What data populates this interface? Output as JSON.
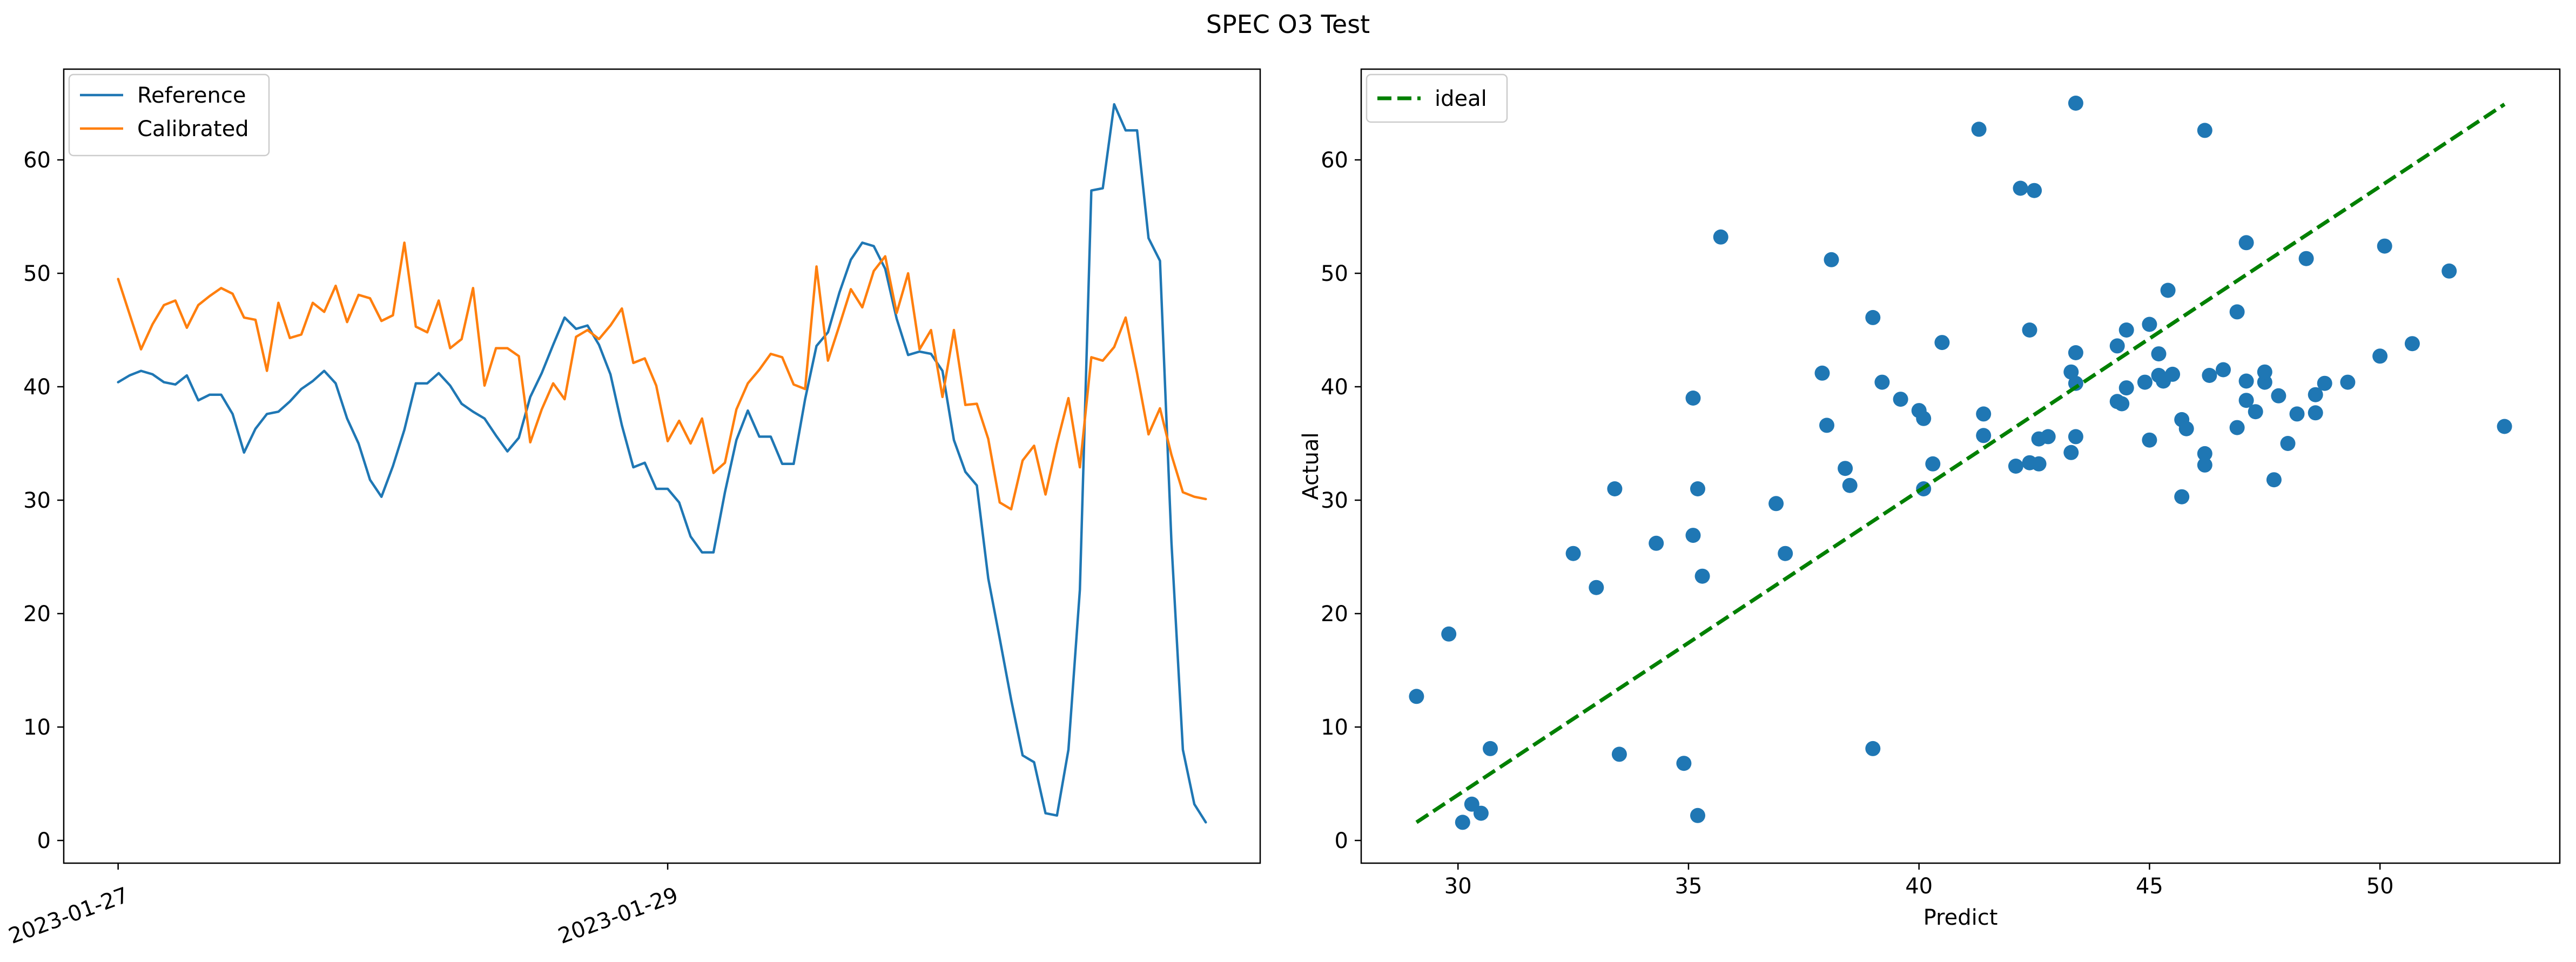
{
  "figure": {
    "title": "SPEC O3 Test"
  },
  "colors": {
    "reference": "#1f77b4",
    "calibrated": "#ff7f0e",
    "scatter": "#1f77b4",
    "ideal": "#008000"
  },
  "chart_data": [
    {
      "type": "line",
      "title": "",
      "xlabel": "",
      "ylabel": "",
      "x_tick_labels": [
        "2023-01-27",
        "2023-01-29"
      ],
      "x_ticks": [
        "2023-01-27T00:00",
        "2023-01-29T00:00"
      ],
      "x_start": "2023-01-27T00:00",
      "x_step_hours": 1,
      "ylim": [
        -2,
        68
      ],
      "y_ticks": [
        0,
        10,
        20,
        30,
        40,
        50,
        60
      ],
      "legend": {
        "placement": "upper left",
        "entries": [
          "Reference",
          "Calibrated"
        ]
      },
      "series": [
        {
          "name": "Reference",
          "color": "#1f77b4",
          "values": [
            40.4,
            41.0,
            41.4,
            41.1,
            40.4,
            40.2,
            41.0,
            38.8,
            39.3,
            39.3,
            37.6,
            34.2,
            36.3,
            37.6,
            37.8,
            38.7,
            39.8,
            40.5,
            41.4,
            40.3,
            37.2,
            35.0,
            31.8,
            30.3,
            33.0,
            36.2,
            40.3,
            40.3,
            41.2,
            40.1,
            38.5,
            37.8,
            37.2,
            35.7,
            34.3,
            35.5,
            39.1,
            41.2,
            43.7,
            46.1,
            45.1,
            45.4,
            43.7,
            41.1,
            36.6,
            32.9,
            33.3,
            31.0,
            31.0,
            29.8,
            26.8,
            25.4,
            25.4,
            30.7,
            35.3,
            37.9,
            35.6,
            35.6,
            33.2,
            33.2,
            38.9,
            43.6,
            44.8,
            48.3,
            51.2,
            52.7,
            52.4,
            50.4,
            46.0,
            42.8,
            43.1,
            42.9,
            41.4,
            35.3,
            32.5,
            31.3,
            23.1,
            17.8,
            12.4,
            7.5,
            6.9,
            2.4,
            2.2,
            8.0,
            22.1,
            57.3,
            57.5,
            64.9,
            62.6,
            62.6,
            53.1,
            51.1,
            26.3,
            8.0,
            3.2,
            1.6
          ]
        },
        {
          "name": "Calibrated",
          "color": "#ff7f0e",
          "values": [
            49.5,
            46.4,
            43.3,
            45.5,
            47.2,
            47.6,
            45.2,
            47.2,
            48.0,
            48.7,
            48.2,
            46.1,
            45.9,
            41.4,
            47.4,
            44.3,
            44.6,
            47.4,
            46.6,
            48.9,
            45.7,
            48.1,
            47.8,
            45.8,
            46.3,
            52.7,
            45.3,
            44.8,
            47.6,
            43.4,
            44.2,
            48.7,
            40.1,
            43.4,
            43.4,
            42.7,
            35.1,
            38.0,
            40.3,
            38.9,
            44.4,
            45.0,
            44.2,
            45.4,
            46.9,
            42.1,
            42.5,
            40.1,
            35.2,
            37.0,
            35.0,
            37.2,
            32.4,
            33.3,
            38.0,
            40.3,
            41.5,
            42.9,
            42.6,
            40.2,
            39.8,
            50.6,
            42.3,
            45.4,
            48.6,
            47.0,
            50.2,
            51.5,
            46.5,
            50.0,
            43.3,
            45.0,
            39.1,
            45.0,
            38.4,
            38.5,
            35.4,
            29.8,
            29.2,
            33.5,
            34.8,
            30.5,
            35.0,
            39.0,
            32.9,
            42.6,
            42.3,
            43.5,
            46.1,
            41.2,
            35.8,
            38.1,
            34.0,
            30.7,
            30.3,
            30.1
          ]
        }
      ]
    },
    {
      "type": "scatter",
      "title": "",
      "xlabel": "Predict",
      "ylabel": "Actual",
      "xlim": [
        27.9,
        53.9
      ],
      "ylim": [
        -2,
        68
      ],
      "x_ticks": [
        30,
        35,
        40,
        45,
        50
      ],
      "y_ticks": [
        0,
        10,
        20,
        30,
        40,
        50,
        60
      ],
      "legend": {
        "placement": "upper left",
        "entries": [
          "ideal"
        ]
      },
      "ideal_line": {
        "name": "ideal",
        "color": "#008000",
        "x": [
          29.1,
          52.7
        ],
        "y": [
          1.6,
          64.9
        ]
      },
      "points": [
        [
          29.1,
          12.7
        ],
        [
          29.8,
          18.2
        ],
        [
          30.1,
          1.6
        ],
        [
          30.3,
          3.2
        ],
        [
          30.5,
          2.4
        ],
        [
          30.7,
          8.1
        ],
        [
          32.5,
          25.3
        ],
        [
          33.0,
          22.3
        ],
        [
          33.4,
          31.0
        ],
        [
          33.5,
          7.6
        ],
        [
          34.3,
          26.2
        ],
        [
          34.9,
          6.8
        ],
        [
          35.1,
          39.0
        ],
        [
          35.1,
          26.9
        ],
        [
          35.2,
          2.2
        ],
        [
          35.2,
          31.0
        ],
        [
          35.3,
          23.3
        ],
        [
          35.7,
          53.2
        ],
        [
          36.9,
          29.7
        ],
        [
          37.1,
          25.3
        ],
        [
          37.9,
          41.2
        ],
        [
          38.0,
          36.6
        ],
        [
          38.1,
          51.2
        ],
        [
          38.4,
          32.8
        ],
        [
          38.5,
          31.3
        ],
        [
          39.0,
          46.1
        ],
        [
          39.0,
          8.1
        ],
        [
          39.2,
          40.4
        ],
        [
          39.6,
          38.9
        ],
        [
          40.0,
          37.9
        ],
        [
          40.1,
          31.0
        ],
        [
          40.1,
          37.2
        ],
        [
          40.3,
          33.2
        ],
        [
          40.5,
          43.9
        ],
        [
          41.3,
          62.7
        ],
        [
          41.4,
          35.7
        ],
        [
          41.4,
          37.6
        ],
        [
          42.1,
          33.0
        ],
        [
          42.2,
          57.5
        ],
        [
          42.4,
          45.0
        ],
        [
          42.4,
          33.3
        ],
        [
          42.5,
          57.3
        ],
        [
          42.6,
          35.4
        ],
        [
          42.6,
          33.2
        ],
        [
          42.8,
          35.6
        ],
        [
          43.3,
          41.3
        ],
        [
          43.3,
          34.2
        ],
        [
          43.4,
          65.0
        ],
        [
          43.4,
          35.6
        ],
        [
          43.4,
          40.3
        ],
        [
          43.4,
          43.0
        ],
        [
          44.3,
          38.7
        ],
        [
          44.3,
          43.6
        ],
        [
          44.4,
          38.5
        ],
        [
          44.5,
          45.0
        ],
        [
          44.5,
          39.9
        ],
        [
          44.9,
          40.4
        ],
        [
          45.0,
          35.3
        ],
        [
          45.0,
          45.5
        ],
        [
          45.2,
          42.9
        ],
        [
          45.2,
          41.0
        ],
        [
          45.3,
          40.5
        ],
        [
          45.4,
          48.5
        ],
        [
          45.5,
          41.1
        ],
        [
          45.7,
          30.3
        ],
        [
          45.7,
          37.1
        ],
        [
          45.8,
          36.3
        ],
        [
          46.2,
          34.1
        ],
        [
          46.2,
          33.1
        ],
        [
          46.2,
          62.6
        ],
        [
          46.3,
          41.0
        ],
        [
          46.6,
          41.5
        ],
        [
          46.9,
          36.4
        ],
        [
          46.9,
          46.6
        ],
        [
          47.1,
          52.7
        ],
        [
          47.1,
          38.8
        ],
        [
          47.1,
          40.5
        ],
        [
          47.3,
          37.8
        ],
        [
          47.5,
          40.4
        ],
        [
          47.5,
          41.3
        ],
        [
          47.7,
          31.8
        ],
        [
          47.8,
          39.2
        ],
        [
          48.0,
          35.0
        ],
        [
          48.2,
          37.6
        ],
        [
          48.4,
          51.3
        ],
        [
          48.6,
          37.7
        ],
        [
          48.6,
          39.3
        ],
        [
          48.8,
          40.3
        ],
        [
          49.3,
          40.4
        ],
        [
          50.0,
          42.7
        ],
        [
          50.1,
          52.4
        ],
        [
          50.7,
          43.8
        ],
        [
          51.5,
          50.2
        ],
        [
          52.7,
          36.5
        ]
      ]
    }
  ]
}
